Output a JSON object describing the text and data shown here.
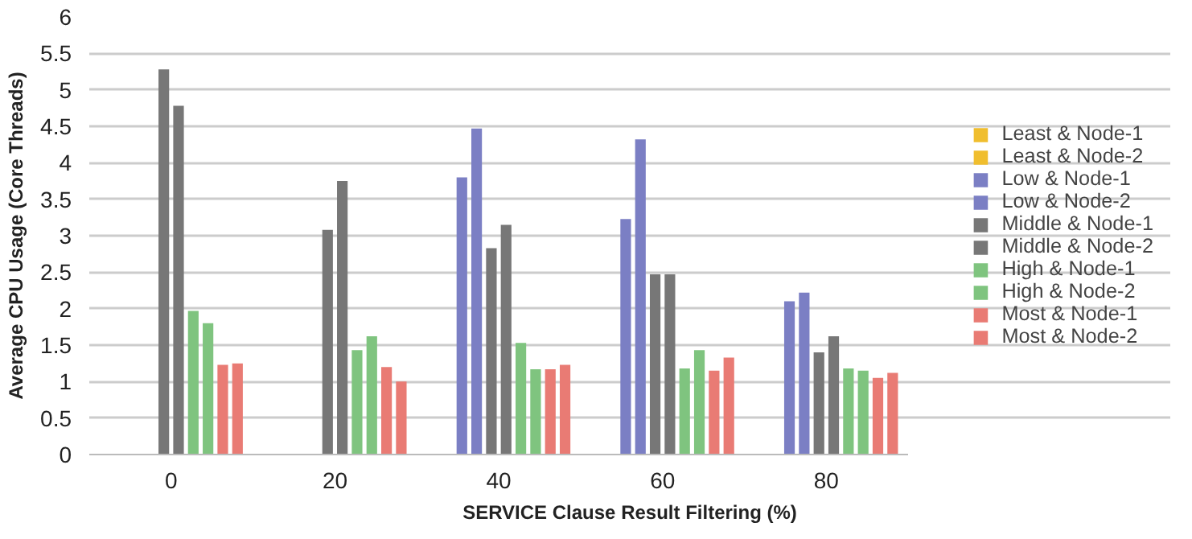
{
  "chart_data": {
    "type": "bar",
    "xlabel": "SERVICE Clause Result Filtering (%)",
    "ylabel": "Average CPU Usage (Core Threads)",
    "categories": [
      "0",
      "20",
      "40",
      "60",
      "80"
    ],
    "series": [
      {
        "name": "Least & Node-1",
        "color": "#f0be2e",
        "values": [
          null,
          null,
          null,
          null,
          null
        ]
      },
      {
        "name": "Least & Node-2",
        "color": "#f0be2e",
        "values": [
          null,
          null,
          null,
          null,
          null
        ]
      },
      {
        "name": "Low & Node-1",
        "color": "#7b7fc4",
        "values": [
          null,
          null,
          3.8,
          3.23,
          2.1
        ]
      },
      {
        "name": "Low & Node-2",
        "color": "#7b7fc4",
        "values": [
          null,
          null,
          4.47,
          4.32,
          2.22
        ]
      },
      {
        "name": "Middle & Node-1",
        "color": "#777777",
        "values": [
          5.28,
          3.08,
          2.83,
          2.47,
          1.4
        ]
      },
      {
        "name": "Middle & Node-2",
        "color": "#777777",
        "values": [
          4.78,
          3.75,
          3.15,
          2.47,
          1.62
        ]
      },
      {
        "name": "High & Node-1",
        "color": "#7fc47f",
        "values": [
          1.97,
          1.43,
          1.53,
          1.18,
          1.18
        ]
      },
      {
        "name": "High & Node-2",
        "color": "#7fc47f",
        "values": [
          1.8,
          1.62,
          1.17,
          1.43,
          1.15
        ]
      },
      {
        "name": "Most & Node-1",
        "color": "#e97b74",
        "values": [
          1.23,
          1.2,
          1.17,
          1.15,
          1.05
        ]
      },
      {
        "name": "Most & Node-2",
        "color": "#e97b74",
        "values": [
          1.25,
          1.0,
          1.23,
          1.33,
          1.12
        ]
      }
    ],
    "ylim": [
      0,
      6
    ],
    "yticks": [
      0,
      0.5,
      1,
      1.5,
      2,
      2.5,
      3,
      3.5,
      4,
      4.5,
      5,
      5.5,
      6
    ],
    "grid": "y",
    "legend": "right"
  }
}
